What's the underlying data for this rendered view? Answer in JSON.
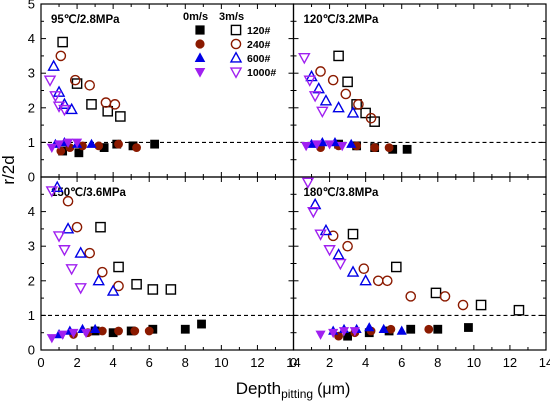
{
  "figure": {
    "ylabel": "r/2d",
    "xlabel_main": "Depth",
    "xlabel_sub": "pitting",
    "xlabel_unit": "(μm)",
    "legend_header_solid": "0m/s",
    "legend_header_open": "3m/s"
  },
  "legend": [
    {
      "label": "120#",
      "marker": "square",
      "color": "#000000"
    },
    {
      "label": "240#",
      "marker": "circle",
      "color": "#8b1a00"
    },
    {
      "label": "600#",
      "marker": "triangle-up",
      "color": "#0000e6"
    },
    {
      "label": "1000#",
      "marker": "triangle-down",
      "color": "#a020f0"
    }
  ],
  "chart_data": [
    {
      "type": "scatter",
      "title": "95℃/2.8MPa",
      "xlim": [
        0,
        14
      ],
      "ylim": [
        0,
        5
      ],
      "reference_line_y": 1,
      "series": [
        {
          "name": "120#",
          "velocity": "0m/s",
          "points": [
            [
              1.2,
              0.75
            ],
            [
              2.1,
              0.7
            ],
            [
              3.5,
              0.85
            ],
            [
              4.2,
              0.95
            ],
            [
              5.1,
              0.9
            ],
            [
              6.3,
              0.95
            ]
          ]
        },
        {
          "name": "120#",
          "velocity": "3m/s",
          "points": [
            [
              1.2,
              3.9
            ],
            [
              2.0,
              2.7
            ],
            [
              2.8,
              2.1
            ],
            [
              3.7,
              1.9
            ],
            [
              4.4,
              1.75
            ]
          ]
        },
        {
          "name": "240#",
          "velocity": "0m/s",
          "points": [
            [
              1.1,
              0.75
            ],
            [
              1.6,
              0.85
            ],
            [
              2.3,
              0.9
            ],
            [
              3.2,
              0.9
            ],
            [
              4.3,
              0.95
            ],
            [
              5.3,
              0.85
            ]
          ]
        },
        {
          "name": "240#",
          "velocity": "3m/s",
          "points": [
            [
              1.1,
              3.5
            ],
            [
              1.9,
              2.8
            ],
            [
              2.7,
              2.65
            ],
            [
              3.6,
              2.15
            ],
            [
              4.1,
              2.1
            ]
          ]
        },
        {
          "name": "600#",
          "velocity": "0m/s",
          "points": [
            [
              0.8,
              0.95
            ],
            [
              1.3,
              1.0
            ],
            [
              2.0,
              0.95
            ],
            [
              2.8,
              0.95
            ]
          ]
        },
        {
          "name": "600#",
          "velocity": "3m/s",
          "points": [
            [
              0.7,
              3.2
            ],
            [
              1.0,
              2.45
            ],
            [
              1.3,
              2.1
            ],
            [
              1.7,
              1.95
            ]
          ]
        },
        {
          "name": "1000#",
          "velocity": "0m/s",
          "points": [
            [
              0.6,
              0.85
            ],
            [
              1.0,
              0.95
            ],
            [
              1.5,
              1.0
            ],
            [
              2.0,
              1.0
            ]
          ]
        },
        {
          "name": "1000#",
          "velocity": "3m/s",
          "points": [
            [
              0.5,
              2.8
            ],
            [
              0.8,
              2.35
            ],
            [
              1.0,
              2.05
            ],
            [
              1.3,
              1.95
            ]
          ]
        }
      ]
    },
    {
      "type": "scatter",
      "title": "120℃/3.2MPa",
      "xlim": [
        0,
        14
      ],
      "ylim": [
        0,
        5
      ],
      "reference_line_y": 1,
      "series": [
        {
          "name": "120#",
          "velocity": "0m/s",
          "points": [
            [
              2.5,
              0.95
            ],
            [
              3.5,
              0.9
            ],
            [
              4.5,
              0.85
            ],
            [
              5.5,
              0.8
            ],
            [
              6.3,
              0.8
            ]
          ]
        },
        {
          "name": "120#",
          "velocity": "3m/s",
          "points": [
            [
              2.5,
              3.5
            ],
            [
              3.0,
              2.75
            ],
            [
              3.5,
              2.1
            ],
            [
              4.0,
              1.85
            ],
            [
              4.5,
              1.6
            ]
          ]
        },
        {
          "name": "240#",
          "velocity": "0m/s",
          "points": [
            [
              1.5,
              0.85
            ],
            [
              2.5,
              0.9
            ],
            [
              3.5,
              0.9
            ],
            [
              4.5,
              0.85
            ],
            [
              5.3,
              0.85
            ]
          ]
        },
        {
          "name": "240#",
          "velocity": "3m/s",
          "points": [
            [
              1.5,
              3.05
            ],
            [
              2.2,
              2.8
            ],
            [
              2.9,
              2.4
            ],
            [
              3.6,
              2.1
            ],
            [
              4.3,
              1.7
            ]
          ]
        },
        {
          "name": "600#",
          "velocity": "0m/s",
          "points": [
            [
              1.0,
              0.95
            ],
            [
              1.6,
              1.0
            ],
            [
              2.3,
              1.0
            ],
            [
              3.2,
              0.95
            ]
          ]
        },
        {
          "name": "600#",
          "velocity": "3m/s",
          "points": [
            [
              1.0,
              2.9
            ],
            [
              1.4,
              2.55
            ],
            [
              1.8,
              2.2
            ],
            [
              2.5,
              2.0
            ],
            [
              3.3,
              1.85
            ]
          ]
        },
        {
          "name": "1000#",
          "velocity": "0m/s",
          "points": [
            [
              0.7,
              0.9
            ],
            [
              1.3,
              0.95
            ],
            [
              2.0,
              0.95
            ],
            [
              2.7,
              0.9
            ]
          ]
        },
        {
          "name": "1000#",
          "velocity": "3m/s",
          "points": [
            [
              0.6,
              3.45
            ],
            [
              0.9,
              2.8
            ],
            [
              1.2,
              2.35
            ],
            [
              1.6,
              1.9
            ]
          ]
        }
      ]
    },
    {
      "type": "scatter",
      "title": "150℃/3.6MPa",
      "xlim": [
        0,
        14
      ],
      "ylim": [
        0,
        5
      ],
      "reference_line_y": 1,
      "series": [
        {
          "name": "120#",
          "velocity": "0m/s",
          "points": [
            [
              3.0,
              0.55
            ],
            [
              4.0,
              0.5
            ],
            [
              5.0,
              0.55
            ],
            [
              6.2,
              0.6
            ],
            [
              8.0,
              0.6
            ],
            [
              8.9,
              0.75
            ]
          ]
        },
        {
          "name": "120#",
          "velocity": "3m/s",
          "points": [
            [
              3.3,
              3.55
            ],
            [
              4.3,
              2.4
            ],
            [
              5.3,
              1.9
            ],
            [
              6.2,
              1.75
            ],
            [
              7.2,
              1.75
            ]
          ]
        },
        {
          "name": "240#",
          "velocity": "0m/s",
          "points": [
            [
              1.8,
              0.45
            ],
            [
              2.6,
              0.5
            ],
            [
              3.4,
              0.55
            ],
            [
              4.3,
              0.55
            ],
            [
              5.2,
              0.55
            ],
            [
              6.0,
              0.55
            ]
          ]
        },
        {
          "name": "240#",
          "velocity": "3m/s",
          "points": [
            [
              1.5,
              4.3
            ],
            [
              2.0,
              3.55
            ],
            [
              2.7,
              2.8
            ],
            [
              3.4,
              2.25
            ],
            [
              4.3,
              1.85
            ]
          ]
        },
        {
          "name": "600#",
          "velocity": "0m/s",
          "points": [
            [
              1.0,
              0.45
            ],
            [
              1.6,
              0.55
            ],
            [
              2.3,
              0.6
            ],
            [
              3.0,
              0.6
            ]
          ]
        },
        {
          "name": "600#",
          "velocity": "3m/s",
          "points": [
            [
              0.9,
              4.7
            ],
            [
              1.5,
              3.5
            ],
            [
              2.2,
              2.8
            ],
            [
              3.2,
              2.0
            ],
            [
              4.0,
              1.7
            ]
          ]
        },
        {
          "name": "1000#",
          "velocity": "0m/s",
          "points": [
            [
              0.6,
              0.35
            ],
            [
              1.2,
              0.45
            ],
            [
              1.8,
              0.5
            ],
            [
              2.5,
              0.5
            ]
          ]
        },
        {
          "name": "1000#",
          "velocity": "3m/s",
          "points": [
            [
              0.6,
              4.6
            ],
            [
              1.0,
              3.3
            ],
            [
              1.3,
              2.9
            ],
            [
              1.7,
              2.35
            ],
            [
              2.2,
              1.8
            ]
          ]
        }
      ]
    },
    {
      "type": "scatter",
      "title": "180℃/3.8MPa",
      "xlim": [
        0,
        14
      ],
      "ylim": [
        0,
        5
      ],
      "reference_line_y": 1,
      "series": [
        {
          "name": "120#",
          "velocity": "0m/s",
          "points": [
            [
              3.0,
              0.4
            ],
            [
              4.2,
              0.5
            ],
            [
              5.3,
              0.55
            ],
            [
              6.5,
              0.6
            ],
            [
              8.0,
              0.6
            ],
            [
              9.7,
              0.65
            ]
          ]
        },
        {
          "name": "120#",
          "velocity": "3m/s",
          "points": [
            [
              3.3,
              3.35
            ],
            [
              5.7,
              2.4
            ],
            [
              7.9,
              1.65
            ],
            [
              10.4,
              1.3
            ],
            [
              12.5,
              1.15
            ]
          ]
        },
        {
          "name": "240#",
          "velocity": "0m/s",
          "points": [
            [
              2.5,
              0.4
            ],
            [
              3.4,
              0.5
            ],
            [
              4.3,
              0.55
            ],
            [
              5.4,
              0.6
            ],
            [
              7.5,
              0.6
            ]
          ]
        },
        {
          "name": "240#",
          "velocity": "3m/s",
          "points": [
            [
              2.2,
              3.3
            ],
            [
              3.0,
              3.0
            ],
            [
              3.9,
              2.35
            ],
            [
              4.7,
              2.0
            ],
            [
              5.2,
              2.0
            ],
            [
              6.5,
              1.55
            ],
            [
              8.4,
              1.55
            ],
            [
              9.4,
              1.3
            ]
          ]
        },
        {
          "name": "600#",
          "velocity": "0m/s",
          "points": [
            [
              2.2,
              0.55
            ],
            [
              2.8,
              0.6
            ],
            [
              3.5,
              0.6
            ],
            [
              4.2,
              0.65
            ],
            [
              5.0,
              0.6
            ],
            [
              6.0,
              0.55
            ]
          ]
        },
        {
          "name": "600#",
          "velocity": "3m/s",
          "points": [
            [
              1.2,
              4.2
            ],
            [
              1.8,
              3.45
            ],
            [
              2.5,
              2.75
            ],
            [
              3.3,
              2.25
            ],
            [
              4.0,
              2.0
            ]
          ]
        },
        {
          "name": "1000#",
          "velocity": "0m/s",
          "points": [
            [
              1.5,
              0.45
            ],
            [
              2.2,
              0.5
            ],
            [
              2.8,
              0.55
            ],
            [
              3.4,
              0.55
            ]
          ]
        },
        {
          "name": "1000#",
          "velocity": "3m/s",
          "points": [
            [
              0.8,
              4.85
            ],
            [
              1.1,
              4.0
            ],
            [
              1.5,
              3.35
            ],
            [
              2.0,
              2.9
            ],
            [
              2.6,
              2.5
            ]
          ]
        }
      ]
    }
  ]
}
